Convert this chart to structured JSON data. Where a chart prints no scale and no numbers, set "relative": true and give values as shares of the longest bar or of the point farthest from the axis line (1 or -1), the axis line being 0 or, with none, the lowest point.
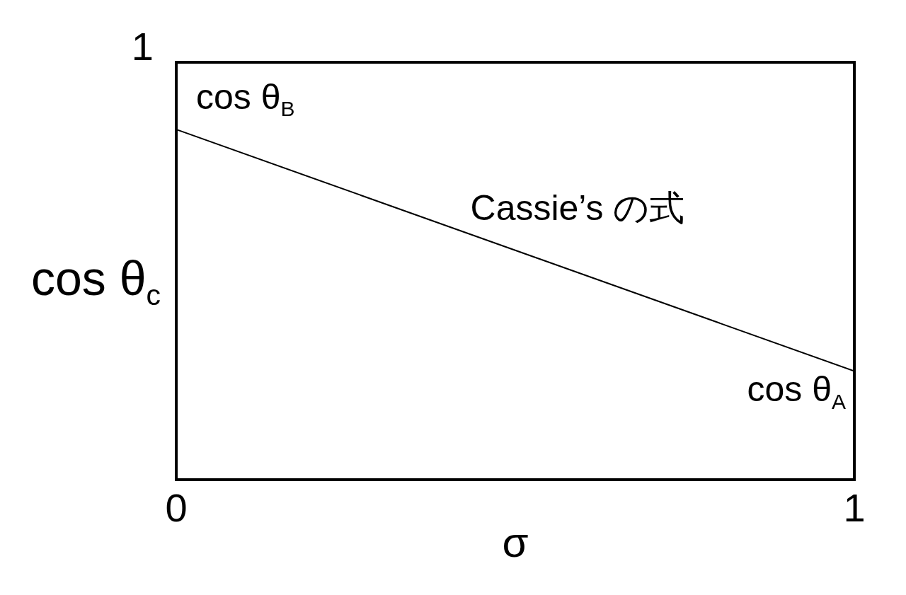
{
  "chart_data": {
    "type": "line",
    "xlabel": "σ",
    "ylabel": "cos θ$_{c}$",
    "x": [
      0,
      1
    ],
    "series": [
      {
        "name": "Cassie’s の式",
        "color": "#000000",
        "values": [
          1,
          0.31
        ]
      }
    ],
    "relative": true,
    "xlim": [
      0,
      1
    ],
    "xticks": [
      0,
      1
    ],
    "marker": "none",
    "line_style": "solid",
    "annotations": [
      "1",
      {
        "text": "cos θ$_{B}$",
        "x": 0,
        "y": 1
      },
      {
        "text": "cos θ$_{A}$",
        "x": 1,
        "y": 0.31
      }
    ]
  }
}
